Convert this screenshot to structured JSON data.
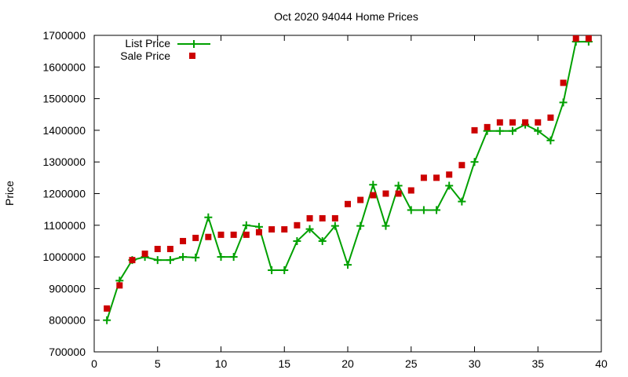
{
  "chart_data": {
    "type": "line",
    "title": "Oct 2020 94044 Home Prices",
    "xlabel": "",
    "ylabel": "Price",
    "xlim": [
      0,
      40
    ],
    "ylim": [
      700000,
      1700000
    ],
    "xticks": [
      0,
      5,
      10,
      15,
      20,
      25,
      30,
      35,
      40
    ],
    "yticks": [
      700000,
      800000,
      900000,
      1000000,
      1100000,
      1200000,
      1300000,
      1400000,
      1500000,
      1600000,
      1700000
    ],
    "grid": false,
    "legend_position": "top-left",
    "x": [
      1,
      2,
      3,
      4,
      5,
      6,
      7,
      8,
      9,
      10,
      11,
      12,
      13,
      14,
      15,
      16,
      17,
      18,
      19,
      20,
      21,
      22,
      23,
      24,
      25,
      26,
      27,
      28,
      29,
      30,
      31,
      32,
      33,
      34,
      35,
      36,
      37,
      38,
      39
    ],
    "series": [
      {
        "name": "List Price",
        "style": "linespoints",
        "color": "#00a000",
        "values": [
          800000,
          925000,
          990000,
          1000000,
          990000,
          990000,
          1000000,
          998000,
          1125000,
          1000000,
          1000000,
          1100000,
          1095000,
          958000,
          958000,
          1050000,
          1088000,
          1050000,
          1098000,
          975000,
          1098000,
          1228000,
          1098000,
          1225000,
          1148000,
          1148000,
          1148000,
          1225000,
          1175000,
          1300000,
          1398000,
          1398000,
          1398000,
          1418000,
          1398000,
          1368000,
          1488000,
          1680000,
          1680000
        ]
      },
      {
        "name": "Sale Price",
        "style": "points",
        "color": "#cc0000",
        "values": [
          837000,
          910000,
          990000,
          1010000,
          1025000,
          1025000,
          1050000,
          1060000,
          1063000,
          1070000,
          1070000,
          1070000,
          1078000,
          1087000,
          1087000,
          1100000,
          1122000,
          1122000,
          1122000,
          1167000,
          1180000,
          1195000,
          1200000,
          1200000,
          1210000,
          1250000,
          1250000,
          1260000,
          1290000,
          1400000,
          1410000,
          1425000,
          1425000,
          1425000,
          1425000,
          1440000,
          1550000,
          1690000,
          1690000
        ]
      }
    ]
  }
}
